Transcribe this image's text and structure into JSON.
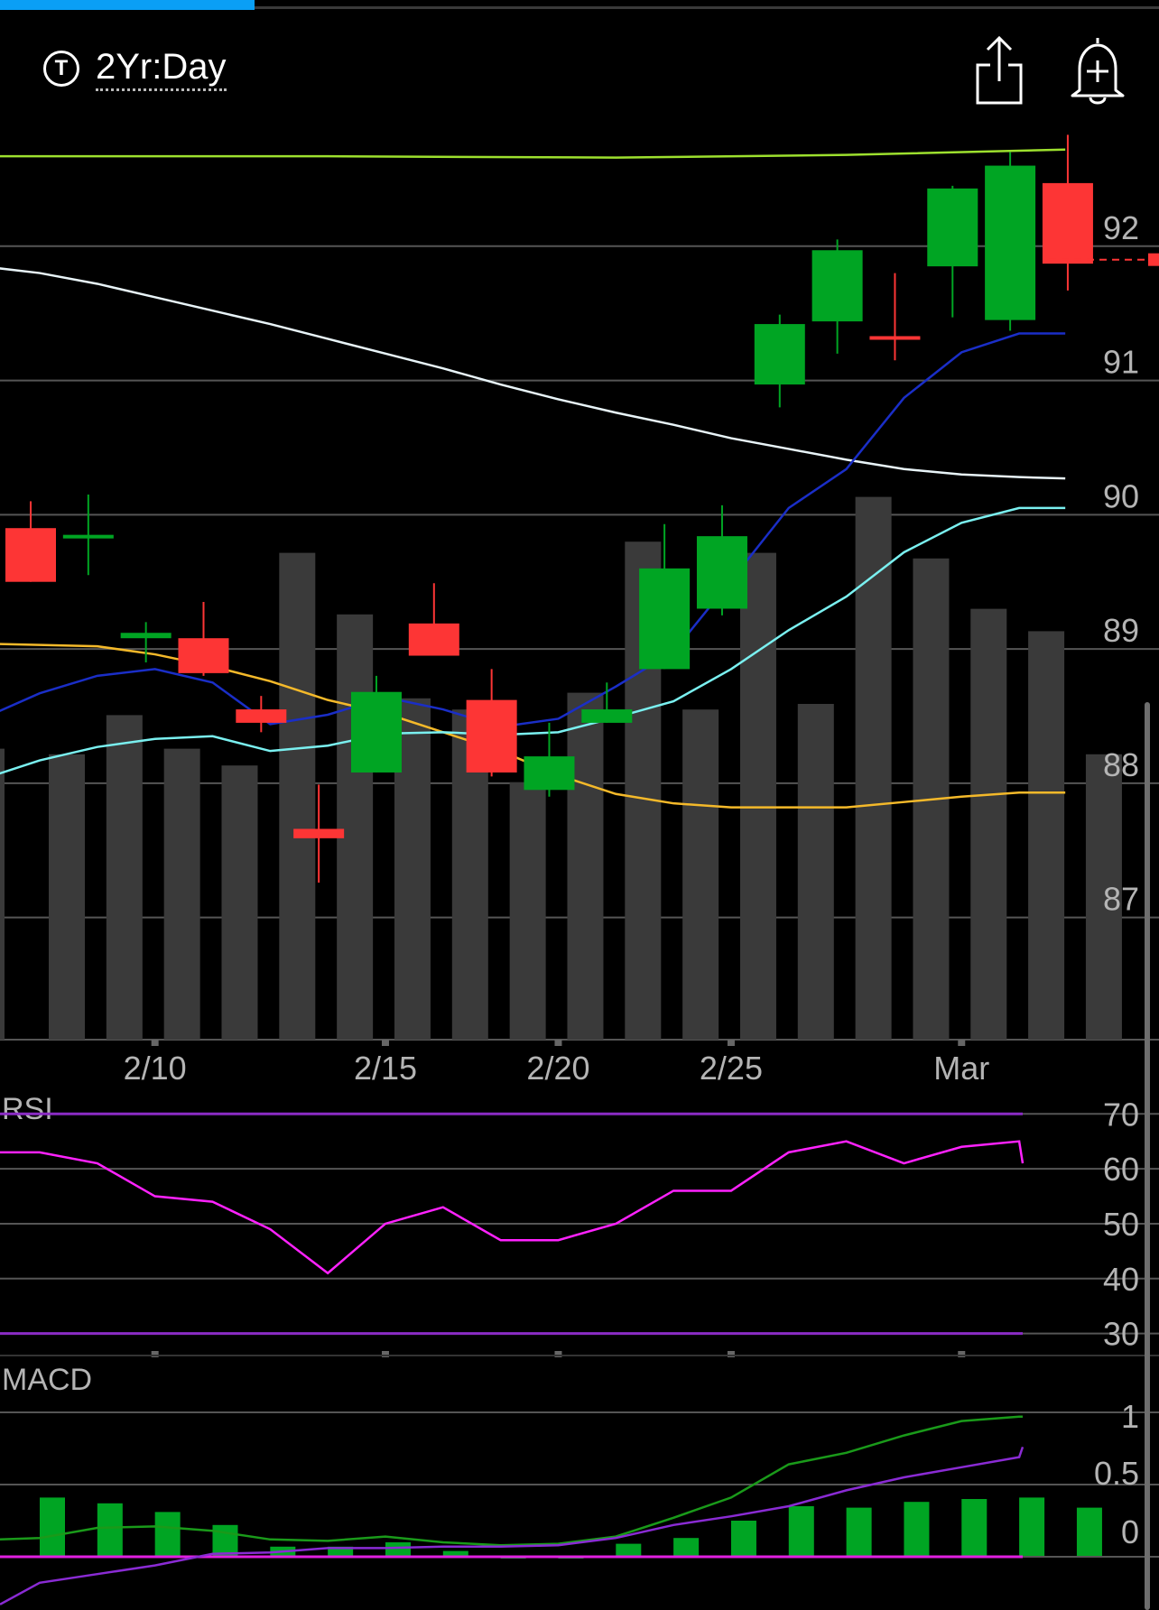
{
  "header": {
    "time_icon_glyph": "T",
    "range_label": "2Yr:Day",
    "share_icon": "share-icon",
    "alert_icon": "bell-plus-icon",
    "load_progress": 0.22
  },
  "colors": {
    "up": "#00a523",
    "down": "#fd3535",
    "volume": "#3a3a3a",
    "ma_green": "#9de02e",
    "ma_white": "#e8f4f8",
    "ma_yellow": "#f4b92a",
    "ma_blue": "#1a2ec7",
    "ma_cyan": "#7af0f0",
    "rsi_line": "#ff22ff",
    "rsi_bounds": "#8a2bc4",
    "macd_line": "#1a9a1a",
    "macd_signal": "#8a2bd4",
    "macd_zero": "#e020e0",
    "grid": "#555555"
  },
  "chart_data": [
    {
      "type": "candlestick",
      "title": "",
      "x_tick_labels": [
        {
          "label": "2/10",
          "index": 2
        },
        {
          "label": "2/15",
          "index": 6
        },
        {
          "label": "2/20",
          "index": 9
        },
        {
          "label": "2/25",
          "index": 12
        },
        {
          "label": "Mar",
          "index": 16
        }
      ],
      "y_ticks": [
        87,
        88,
        89,
        90,
        91,
        92
      ],
      "ylim": [
        86.09,
        92.96
      ],
      "candles": [
        {
          "o": 89.9,
          "h": 90.1,
          "l": 89.5,
          "c": 89.5
        },
        {
          "o": 89.85,
          "h": 90.15,
          "l": 89.55,
          "c": 89.85
        },
        {
          "o": 89.08,
          "h": 89.2,
          "l": 88.9,
          "c": 89.12
        },
        {
          "o": 89.08,
          "h": 89.35,
          "l": 88.8,
          "c": 88.82
        },
        {
          "o": 88.55,
          "h": 88.65,
          "l": 88.38,
          "c": 88.45
        },
        {
          "o": 87.66,
          "h": 87.99,
          "l": 87.26,
          "c": 87.59
        },
        {
          "o": 88.08,
          "h": 88.8,
          "l": 88.08,
          "c": 88.68
        },
        {
          "o": 89.19,
          "h": 89.49,
          "l": 88.95,
          "c": 88.95
        },
        {
          "o": 88.62,
          "h": 88.85,
          "l": 88.05,
          "c": 88.08
        },
        {
          "o": 87.95,
          "h": 88.45,
          "l": 87.9,
          "c": 88.2
        },
        {
          "o": 88.45,
          "h": 88.75,
          "l": 88.45,
          "c": 88.55
        },
        {
          "o": 88.85,
          "h": 89.93,
          "l": 88.85,
          "c": 89.6
        },
        {
          "o": 89.3,
          "h": 90.07,
          "l": 89.25,
          "c": 89.84
        },
        {
          "o": 90.97,
          "h": 91.49,
          "l": 90.8,
          "c": 91.42
        },
        {
          "o": 91.44,
          "h": 92.05,
          "l": 91.2,
          "c": 91.97
        },
        {
          "o": 91.33,
          "h": 91.8,
          "l": 91.15,
          "c": 91.31
        },
        {
          "o": 91.85,
          "h": 92.45,
          "l": 91.47,
          "c": 92.43
        },
        {
          "o": 91.45,
          "h": 92.7,
          "l": 91.37,
          "c": 92.6
        },
        {
          "o": 92.47,
          "h": 92.83,
          "l": 91.67,
          "c": 91.87
        }
      ],
      "volume_max_visual": 1.0,
      "volume": [
        0.51,
        0.58,
        0.52,
        0.49,
        0.87,
        0.76,
        0.61,
        0.59,
        0.46,
        0.62,
        0.89,
        0.59,
        0.87,
        0.6,
        0.97,
        0.86,
        0.77,
        0.73,
        0.51
      ],
      "moving_averages": [
        {
          "key": "ma_green",
          "points": [
            [
              -1,
              92.67
            ],
            [
              5,
              92.67
            ],
            [
              10,
              92.66
            ],
            [
              14,
              92.68
            ],
            [
              17.8,
              92.72
            ]
          ]
        },
        {
          "key": "ma_white",
          "points": [
            [
              -1,
              91.85
            ],
            [
              0,
              91.8
            ],
            [
              1,
              91.72
            ],
            [
              2,
              91.62
            ],
            [
              3,
              91.52
            ],
            [
              4,
              91.42
            ],
            [
              5,
              91.31
            ],
            [
              6,
              91.2
            ],
            [
              7,
              91.09
            ],
            [
              8,
              90.97
            ],
            [
              9,
              90.86
            ],
            [
              10,
              90.76
            ],
            [
              11,
              90.67
            ],
            [
              12,
              90.57
            ],
            [
              13,
              90.49
            ],
            [
              14,
              90.41
            ],
            [
              15,
              90.34
            ],
            [
              16,
              90.3
            ],
            [
              17,
              90.28
            ],
            [
              17.8,
              90.27
            ]
          ]
        },
        {
          "key": "ma_yellow",
          "points": [
            [
              -1,
              89.04
            ],
            [
              0,
              89.03
            ],
            [
              1,
              89.02
            ],
            [
              2,
              88.96
            ],
            [
              3,
              88.87
            ],
            [
              4,
              88.76
            ],
            [
              5,
              88.62
            ],
            [
              6,
              88.52
            ],
            [
              7,
              88.38
            ],
            [
              8,
              88.24
            ],
            [
              9,
              88.06
            ],
            [
              10,
              87.92
            ],
            [
              11,
              87.85
            ],
            [
              12,
              87.82
            ],
            [
              13,
              87.82
            ],
            [
              14,
              87.82
            ],
            [
              15,
              87.86
            ],
            [
              16,
              87.9
            ],
            [
              17,
              87.93
            ],
            [
              17.8,
              87.93
            ]
          ]
        },
        {
          "key": "ma_blue",
          "points": [
            [
              -1,
              88.48
            ],
            [
              0,
              88.67
            ],
            [
              1,
              88.8
            ],
            [
              2,
              88.85
            ],
            [
              3,
              88.75
            ],
            [
              4,
              88.44
            ],
            [
              5,
              88.51
            ],
            [
              6,
              88.64
            ],
            [
              7,
              88.55
            ],
            [
              8,
              88.42
            ],
            [
              9,
              88.48
            ],
            [
              10,
              88.72
            ],
            [
              11,
              88.98
            ],
            [
              12,
              89.51
            ],
            [
              13,
              90.05
            ],
            [
              14,
              90.34
            ],
            [
              15,
              90.87
            ],
            [
              16,
              91.21
            ],
            [
              17,
              91.35
            ],
            [
              17.8,
              91.35
            ]
          ]
        },
        {
          "key": "ma_cyan",
          "points": [
            [
              -1,
              88.03
            ],
            [
              0,
              88.17
            ],
            [
              1,
              88.27
            ],
            [
              2,
              88.33
            ],
            [
              3,
              88.35
            ],
            [
              4,
              88.24
            ],
            [
              5,
              88.28
            ],
            [
              6,
              88.37
            ],
            [
              7,
              88.38
            ],
            [
              8,
              88.36
            ],
            [
              9,
              88.38
            ],
            [
              10,
              88.49
            ],
            [
              11,
              88.61
            ],
            [
              12,
              88.85
            ],
            [
              13,
              89.14
            ],
            [
              14,
              89.39
            ],
            [
              15,
              89.72
            ],
            [
              16,
              89.94
            ],
            [
              17,
              90.05
            ],
            [
              17.8,
              90.05
            ]
          ]
        }
      ],
      "last_price": 91.9
    },
    {
      "type": "line",
      "title": "RSI",
      "y_ticks": [
        30,
        40,
        50,
        60,
        70
      ],
      "ylim": [
        26,
        73
      ],
      "bounds": [
        30,
        70
      ],
      "series": [
        {
          "values": [
            63,
            61,
            55,
            54,
            49,
            41,
            50,
            53,
            47,
            47,
            50,
            56,
            56,
            63,
            65,
            61,
            64,
            65,
            61
          ]
        }
      ],
      "start_value": 63
    },
    {
      "type": "bar+line",
      "title": "MACD",
      "y_ticks": [
        0,
        0.5,
        1
      ],
      "ylim": [
        -0.3,
        1.1
      ],
      "histogram": [
        0.41,
        0.37,
        0.31,
        0.22,
        0.07,
        0.07,
        0.1,
        0.04,
        0.0,
        0.0,
        0.09,
        0.13,
        0.25,
        0.35,
        0.34,
        0.38,
        0.4,
        0.41,
        0.34
      ],
      "series": [
        {
          "key": "macd_line",
          "values": [
            0.13,
            0.2,
            0.21,
            0.18,
            0.12,
            0.11,
            0.14,
            0.1,
            0.08,
            0.09,
            0.14,
            0.27,
            0.41,
            0.64,
            0.72,
            0.84,
            0.94,
            0.97,
            0.97
          ]
        },
        {
          "key": "macd_signal",
          "values": [
            -0.18,
            -0.12,
            -0.06,
            0.02,
            0.03,
            0.06,
            0.06,
            0.07,
            0.07,
            0.08,
            0.13,
            0.22,
            0.28,
            0.35,
            0.46,
            0.55,
            0.62,
            0.69,
            0.76
          ]
        }
      ],
      "start_values": {
        "macd_line": 0.12,
        "macd_signal": -0.33
      }
    }
  ]
}
